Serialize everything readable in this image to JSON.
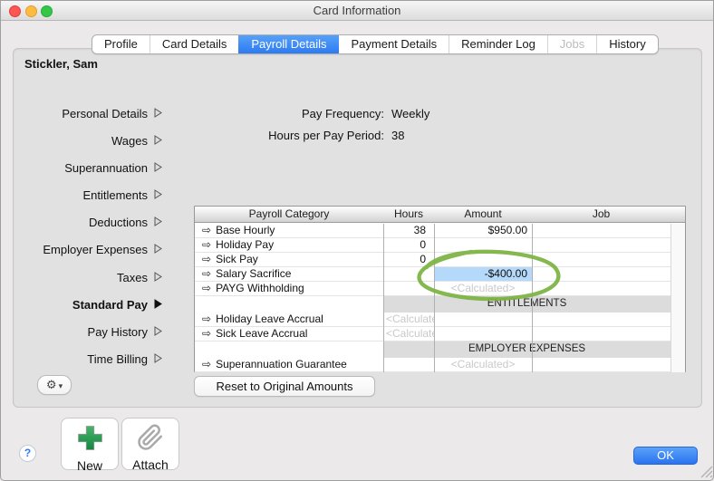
{
  "window": {
    "title": "Card Information"
  },
  "traffic_lights": [
    "close",
    "minimize",
    "zoom"
  ],
  "tabs": [
    {
      "label": "Profile",
      "state": "normal"
    },
    {
      "label": "Card Details",
      "state": "normal"
    },
    {
      "label": "Payroll Details",
      "state": "selected"
    },
    {
      "label": "Payment Details",
      "state": "normal"
    },
    {
      "label": "Reminder Log",
      "state": "normal"
    },
    {
      "label": "Jobs",
      "state": "disabled"
    },
    {
      "label": "History",
      "state": "normal"
    }
  ],
  "employee_name": "Stickler, Sam",
  "sidebar": {
    "items": [
      {
        "label": "Personal Details",
        "active": false
      },
      {
        "label": "Wages",
        "active": false
      },
      {
        "label": "Superannuation",
        "active": false
      },
      {
        "label": "Entitlements",
        "active": false
      },
      {
        "label": "Deductions",
        "active": false
      },
      {
        "label": "Employer Expenses",
        "active": false
      },
      {
        "label": "Taxes",
        "active": false
      },
      {
        "label": "Standard Pay",
        "active": true
      },
      {
        "label": "Pay History",
        "active": false
      },
      {
        "label": "Time Billing",
        "active": false
      }
    ]
  },
  "summary": {
    "pay_frequency_label": "Pay Frequency:",
    "pay_frequency_value": "Weekly",
    "hours_per_pay_period_label": "Hours per Pay Period:",
    "hours_per_pay_period_value": "38"
  },
  "table": {
    "columns": [
      "Payroll Category",
      "Hours",
      "Amount",
      "Job"
    ],
    "rows": [
      {
        "type": "item",
        "category": "Base Hourly",
        "hours": "38",
        "amount": "$950.00",
        "job": ""
      },
      {
        "type": "item",
        "category": "Holiday Pay",
        "hours": "0",
        "amount": "",
        "job": ""
      },
      {
        "type": "item",
        "category": "Sick Pay",
        "hours": "0",
        "amount": "",
        "job": ""
      },
      {
        "type": "item",
        "category": "Salary Sacrifice",
        "hours": "",
        "amount": "-$400.00",
        "job": "",
        "amount_selected": true,
        "annotated": true
      },
      {
        "type": "item",
        "category": "PAYG Withholding",
        "hours": "",
        "amount": "<Calculated>",
        "job": "",
        "amount_calculated": true
      },
      {
        "type": "section",
        "label": "ENTITLEMENTS"
      },
      {
        "type": "item",
        "category": "Holiday Leave Accrual",
        "hours": "<Calculated>",
        "amount": "",
        "job": "",
        "hours_calculated": true
      },
      {
        "type": "item",
        "category": "Sick Leave Accrual",
        "hours": "<Calculated>",
        "amount": "",
        "job": "",
        "hours_calculated": true
      },
      {
        "type": "section",
        "label": "EMPLOYER EXPENSES"
      },
      {
        "type": "item",
        "category": "Superannuation Guarantee",
        "hours": "",
        "amount": "<Calculated>",
        "job": "",
        "amount_calculated": true
      }
    ]
  },
  "buttons": {
    "reset": "Reset to Original Amounts",
    "new": "New",
    "attach": "Attach",
    "ok": "OK",
    "help": "?"
  },
  "icons": {
    "gear": "⚙",
    "caret_down": "▾",
    "row_arrow": "⇨"
  },
  "colors": {
    "accent_blue": "#2d7bf1",
    "selection_blue": "#b5d9fb",
    "annotation_green": "#7cb342",
    "calculated_gray": "#c9c9c9",
    "traffic_red": "#fc5753",
    "traffic_yellow": "#fdbc40",
    "traffic_green": "#33c748"
  }
}
